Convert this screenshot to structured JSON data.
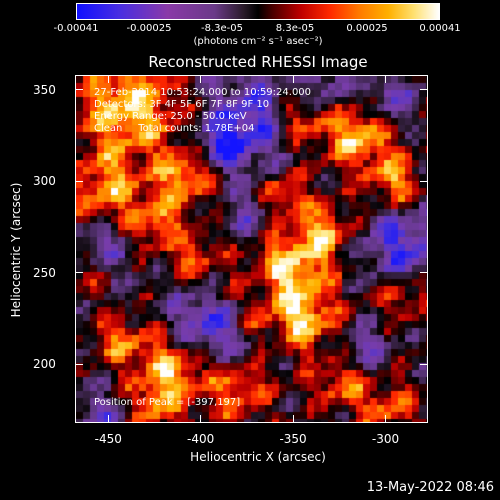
{
  "colorbar": {
    "ticks": [
      "-0.00041",
      "-0.00025",
      "-8.3e-05",
      "8.3e-05",
      "0.00025",
      "0.00041"
    ],
    "unit": "(photons cm⁻² s⁻¹ asec⁻²)"
  },
  "title": "Reconstructed RHESSI Image",
  "info": {
    "time": "27-Feb-2014 10:53:24.000 to 10:59:24.000",
    "detectors": "Detectors: 3F 4F 5F 6F 7F 8F 9F 10",
    "energy": "Energy Range: 25.0 - 50.0 keV",
    "clean": "Clean     Total counts: 1.78E+04"
  },
  "peak": "Position of Peak = [-397,197]",
  "chart_data": {
    "type": "heatmap",
    "title": "Reconstructed RHESSI Image",
    "xlabel": "Heliocentric X (arcsec)",
    "ylabel": "Heliocentric Y (arcsec)",
    "xlim": [
      -468,
      -277
    ],
    "ylim": [
      168,
      358
    ],
    "x_ticks": [
      "-450",
      "-400",
      "-350",
      "-300"
    ],
    "y_ticks": [
      "350",
      "300",
      "250",
      "200"
    ],
    "x_tick_values": [
      -450,
      -400,
      -350,
      -300
    ],
    "y_tick_values": [
      350,
      300,
      250,
      200
    ],
    "color_range": [
      -0.00041,
      0.00041
    ],
    "peak_position": [
      -397,
      197
    ]
  },
  "footer": "13-May-2022 08:46"
}
